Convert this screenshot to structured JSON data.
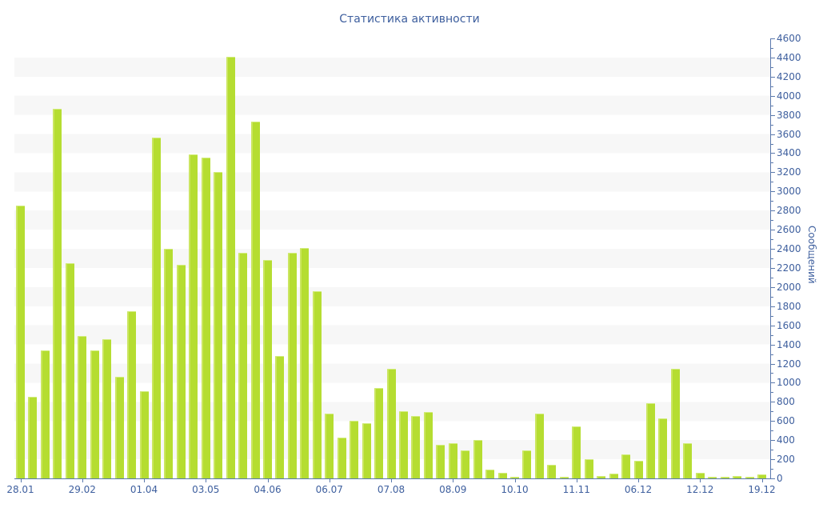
{
  "title": "Статистика активности",
  "chart_data": {
    "type": "bar",
    "title": "Статистика активности",
    "ylabel": "Сообщений",
    "xlabel": "",
    "ylim": [
      0,
      4600
    ],
    "ytick_step": 200,
    "yminor_step": 100,
    "grid": "horizontal-stripes",
    "legend": "none",
    "bar_color": "#b5dd31",
    "stripe_color": "#f7f7f7",
    "axis_color": "#5b79ad",
    "text_color": "#3e5f9e",
    "label_every": 5,
    "x_labels": [
      "28.01",
      "29.02",
      "01.04",
      "03.05",
      "04.06",
      "06.07",
      "07.08",
      "08.09",
      "10.10",
      "11.11",
      "06.12",
      "12.12",
      "19.12"
    ],
    "values": [
      2850,
      850,
      1340,
      3860,
      2250,
      1490,
      1335,
      1455,
      1060,
      1745,
      910,
      3560,
      2400,
      2230,
      3390,
      3350,
      3200,
      4410,
      2360,
      3730,
      2280,
      1280,
      2360,
      2410,
      1960,
      675,
      425,
      600,
      580,
      945,
      1150,
      700,
      650,
      695,
      350,
      365,
      295,
      400,
      95,
      55,
      15,
      290,
      680,
      140,
      15,
      545,
      205,
      25,
      50,
      250,
      180,
      785,
      625,
      1145,
      365,
      55,
      10,
      15,
      25,
      10,
      40
    ]
  }
}
